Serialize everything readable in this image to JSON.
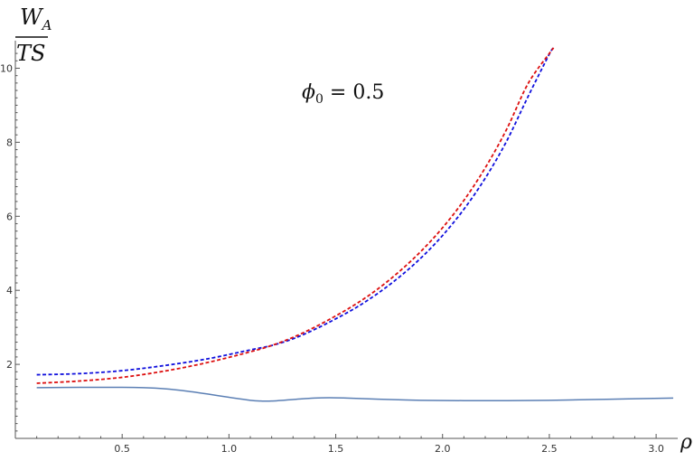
{
  "chart_data": {
    "type": "line",
    "xlabel": "ρ",
    "ylabel": {
      "numerator_main": "W",
      "numerator_sub": "A",
      "denominator": "TS"
    },
    "annotation": {
      "main": "ϕ",
      "sub": "0",
      "rest": " = 0.5"
    },
    "xlim": [
      0.0,
      3.08
    ],
    "ylim": [
      0.0,
      10.5
    ],
    "x_ticks_major": [
      0.5,
      1.0,
      1.5,
      2.0,
      2.5,
      3.0
    ],
    "x_tick_labels": [
      "0.5",
      "1.0",
      "1.5",
      "2.0",
      "2.5",
      "3.0"
    ],
    "y_ticks_major": [
      2,
      4,
      6,
      8,
      10
    ],
    "y_tick_labels": [
      "2",
      "4",
      "6",
      "8",
      "10"
    ],
    "grid": false,
    "series": [
      {
        "style": "dashed",
        "color": "#1010dd",
        "x": [
          0.1,
          0.3,
          0.5,
          0.7,
          0.9,
          1.1,
          1.2,
          1.3,
          1.4,
          1.5,
          1.6,
          1.7,
          1.8,
          1.9,
          2.0,
          2.1,
          2.2,
          2.3,
          2.4,
          2.5,
          2.52
        ],
        "y": [
          1.72,
          1.75,
          1.83,
          1.97,
          2.15,
          2.39,
          2.51,
          2.69,
          2.94,
          3.23,
          3.55,
          3.93,
          4.37,
          4.88,
          5.48,
          6.19,
          7.03,
          8.03,
          9.23,
          10.38,
          10.55
        ]
      },
      {
        "style": "dashed",
        "color": "#dd1010",
        "x": [
          0.1,
          0.3,
          0.5,
          0.7,
          0.9,
          1.1,
          1.2,
          1.3,
          1.4,
          1.5,
          1.6,
          1.7,
          1.8,
          1.9,
          2.0,
          2.1,
          2.2,
          2.3,
          2.4,
          2.5,
          2.52
        ],
        "y": [
          1.49,
          1.55,
          1.65,
          1.82,
          2.05,
          2.34,
          2.51,
          2.73,
          3.0,
          3.31,
          3.65,
          4.05,
          4.52,
          5.06,
          5.69,
          6.43,
          7.31,
          8.35,
          9.58,
          10.4,
          10.55
        ]
      },
      {
        "style": "solid",
        "color": "#5b7fb4",
        "x": [
          0.1,
          0.3,
          0.5,
          0.6,
          0.7,
          0.8,
          0.9,
          1.0,
          1.1,
          1.15,
          1.2,
          1.3,
          1.4,
          1.47,
          1.55,
          1.7,
          1.9,
          2.1,
          2.3,
          2.5,
          2.7,
          2.9,
          3.08
        ],
        "y": [
          1.37,
          1.38,
          1.38,
          1.37,
          1.34,
          1.28,
          1.2,
          1.11,
          1.03,
          1.01,
          1.01,
          1.05,
          1.09,
          1.1,
          1.09,
          1.06,
          1.03,
          1.02,
          1.02,
          1.03,
          1.05,
          1.07,
          1.09
        ]
      }
    ]
  }
}
